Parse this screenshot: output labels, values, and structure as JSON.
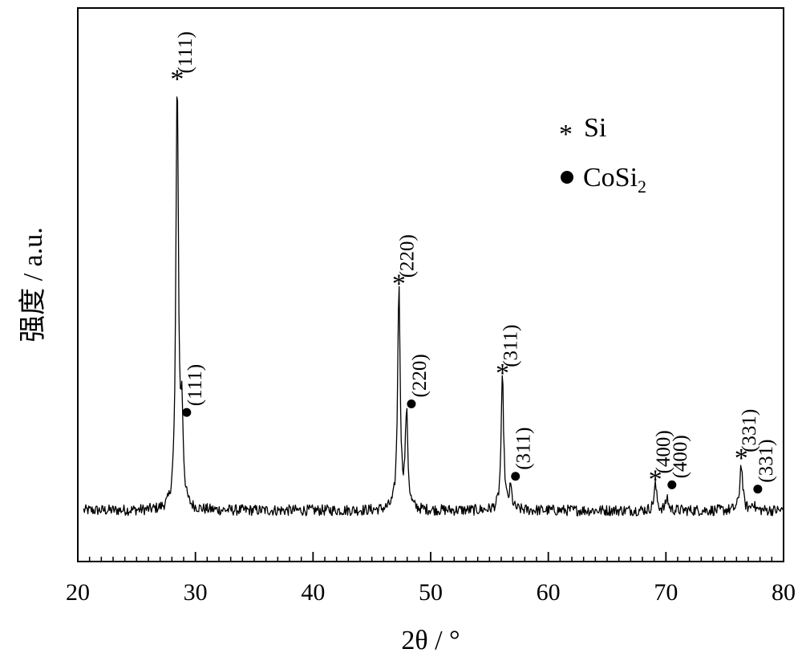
{
  "chart_data": {
    "type": "line",
    "title": "",
    "xlabel": "2θ / °",
    "ylabel": "强度 / a.u.",
    "xlim": [
      20,
      80
    ],
    "ylim": [
      0,
      1.3
    ],
    "xticks": [
      20,
      30,
      40,
      50,
      60,
      70,
      80
    ],
    "grid": false,
    "legend": {
      "placement": "top-right",
      "entries": [
        {
          "marker": "star",
          "label": "Si"
        },
        {
          "marker": "dot",
          "label": "CoSi",
          "sub": "2"
        }
      ]
    },
    "baseline": 0.12,
    "peaks": [
      {
        "x": 28.45,
        "height": 1.0,
        "width": 0.13,
        "phase": "Si",
        "hkl": "(111)",
        "marker": "star"
      },
      {
        "x": 28.85,
        "height": 0.2,
        "width": 0.13,
        "phase": "CoSi2",
        "hkl": "(111)",
        "marker": "dot"
      },
      {
        "x": 47.3,
        "height": 0.52,
        "width": 0.13,
        "phase": "Si",
        "hkl": "(220)",
        "marker": "star"
      },
      {
        "x": 47.95,
        "height": 0.22,
        "width": 0.13,
        "phase": "CoSi2",
        "hkl": "(220)",
        "marker": "dot"
      },
      {
        "x": 56.1,
        "height": 0.31,
        "width": 0.13,
        "phase": "Si",
        "hkl": "(311)",
        "marker": "star"
      },
      {
        "x": 56.8,
        "height": 0.05,
        "width": 0.12,
        "phase": "CoSi2",
        "hkl": "(311)",
        "marker": "dot"
      },
      {
        "x": 69.1,
        "height": 0.06,
        "width": 0.14,
        "phase": "Si",
        "hkl": "(400)",
        "marker": "star"
      },
      {
        "x": 70.1,
        "height": 0.03,
        "width": 0.12,
        "phase": "CoSi2",
        "hkl": "(400)",
        "marker": "dot"
      },
      {
        "x": 76.4,
        "height": 0.11,
        "width": 0.14,
        "phase": "Si",
        "hkl": "(331)",
        "marker": "star"
      },
      {
        "x": 77.4,
        "height": 0.02,
        "width": 0.12,
        "phase": "CoSi2",
        "hkl": "(331)",
        "marker": "dot"
      }
    ]
  }
}
